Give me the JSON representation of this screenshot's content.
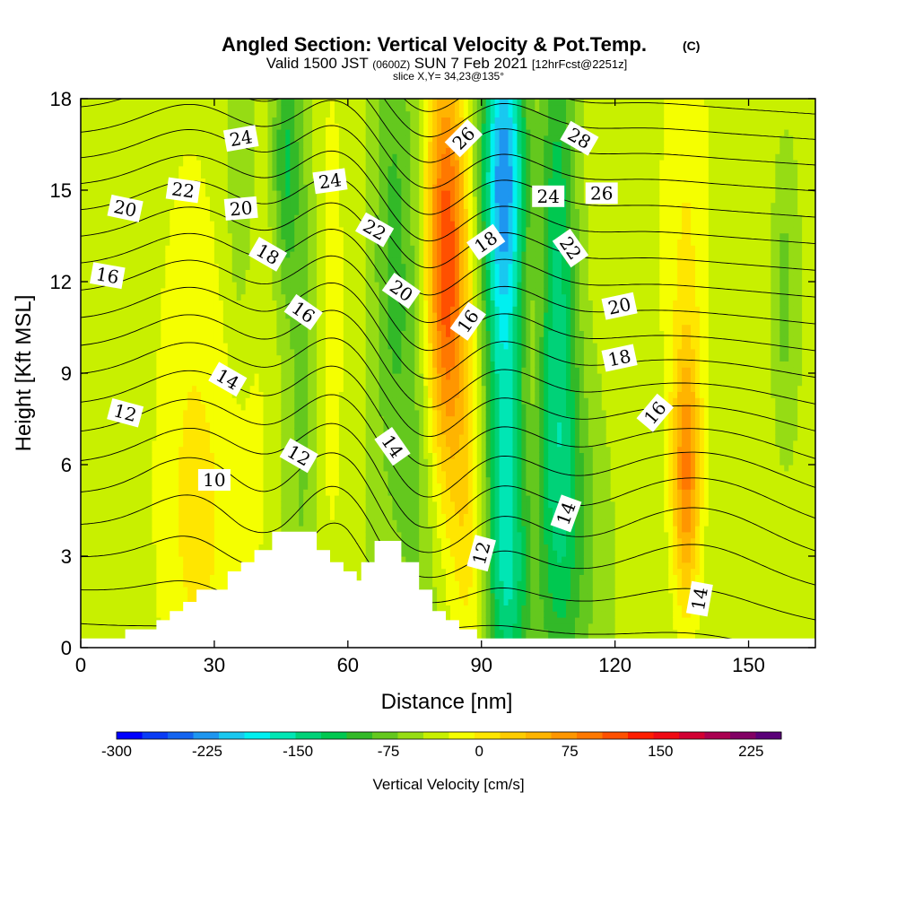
{
  "chart_data": {
    "type": "heatmap",
    "title": "Angled Section: Vertical Velocity & Pot.Temp.",
    "title_unit": "(C)",
    "subtitle_parts": [
      "Valid 1500 JST",
      "(0600Z)",
      "SUN 7 Feb 2021",
      "[12hrFcst@2251z]"
    ],
    "slice_text": "slice X,Y= 34,23@135°",
    "xlabel": "Distance [nm]",
    "ylabel": "Height [Kft MSL]",
    "xlim": [
      0,
      165
    ],
    "ylim": [
      0,
      18
    ],
    "x_ticks": [
      "0",
      "30",
      "60",
      "90",
      "120",
      "150"
    ],
    "y_ticks": [
      "0",
      "3",
      "6",
      "9",
      "12",
      "15",
      "18"
    ],
    "colorbar": {
      "label": "Vertical Velocity [cm/s]",
      "min": -300,
      "max": 250,
      "step": 25,
      "tick_labels": [
        "-300",
        "-225",
        "-150",
        "-75",
        "0",
        "75",
        "150",
        "225"
      ],
      "colors": [
        "#0000ff",
        "#0a3cf5",
        "#1464f0",
        "#1e96f0",
        "#19c8f0",
        "#00f0f0",
        "#00e6b4",
        "#00d278",
        "#00c850",
        "#32b928",
        "#64c81e",
        "#96dc14",
        "#c8f000",
        "#f5ff00",
        "#ffe600",
        "#ffcc00",
        "#ffb400",
        "#ff9600",
        "#ff7800",
        "#ff5000",
        "#ff1e00",
        "#f00a14",
        "#d20032",
        "#aa0050",
        "#820064",
        "#5a0078"
      ]
    },
    "velocity_features": [
      {
        "x": 7,
        "z": 9,
        "w": 10,
        "sx": 10,
        "sz": 14
      },
      {
        "x": 27,
        "z": 3,
        "w": 35,
        "sx": 7,
        "sz": 5
      },
      {
        "x": 25,
        "z": 10,
        "w": 30,
        "sx": 6,
        "sz": 8
      },
      {
        "x": 38,
        "z": 9,
        "w": 30,
        "sx": 4,
        "sz": 8
      },
      {
        "x": 36,
        "z": 15,
        "w": -45,
        "sx": 2.5,
        "sz": 5
      },
      {
        "x": 46,
        "z": 16,
        "w": -75,
        "sx": 2,
        "sz": 3
      },
      {
        "x": 50,
        "z": 9,
        "w": -35,
        "sx": 2.5,
        "sz": 8
      },
      {
        "x": 56,
        "z": 11,
        "w": 35,
        "sx": 3,
        "sz": 9
      },
      {
        "x": 63,
        "z": 12,
        "w": 5,
        "sx": 3,
        "sz": 7
      },
      {
        "x": 70,
        "z": 13,
        "w": -55,
        "sx": 3,
        "sz": 6
      },
      {
        "x": 76,
        "z": 8,
        "w": -40,
        "sx": 3,
        "sz": 7
      },
      {
        "x": 82,
        "z": 15,
        "w": 130,
        "sx": 3.5,
        "sz": 4
      },
      {
        "x": 82,
        "z": 10,
        "w": 110,
        "sx": 3.5,
        "sz": 4
      },
      {
        "x": 87,
        "z": 4,
        "w": 60,
        "sx": 3,
        "sz": 4
      },
      {
        "x": 95,
        "z": 16,
        "w": -170,
        "sx": 3.5,
        "sz": 3.5
      },
      {
        "x": 95,
        "z": 8,
        "w": -120,
        "sx": 3,
        "sz": 6
      },
      {
        "x": 97,
        "z": 2,
        "w": -65,
        "sx": 4,
        "sz": 3
      },
      {
        "x": 102,
        "z": 10,
        "w": 20,
        "sx": 2,
        "sz": 9
      },
      {
        "x": 107,
        "z": 11,
        "w": -110,
        "sx": 3,
        "sz": 7
      },
      {
        "x": 110,
        "z": 4,
        "w": -55,
        "sx": 5,
        "sz": 4
      },
      {
        "x": 121,
        "z": 13,
        "w": 15,
        "sx": 9,
        "sz": 8
      },
      {
        "x": 136,
        "z": 5.5,
        "w": 135,
        "sx": 2.2,
        "sz": 3
      },
      {
        "x": 136,
        "z": 14,
        "w": 40,
        "sx": 4,
        "sz": 6
      },
      {
        "x": 143,
        "z": 13,
        "w": 8,
        "sx": 8,
        "sz": 8
      },
      {
        "x": 158,
        "z": 11.5,
        "w": -50,
        "sx": 1.3,
        "sz": 2
      }
    ],
    "theta_levels": [
      10,
      11,
      12,
      13,
      14,
      15,
      16,
      17,
      18,
      19,
      20,
      21,
      22,
      23,
      24,
      25,
      26,
      27,
      28,
      29,
      30
    ],
    "contour_labels": [
      {
        "text": "24",
        "x": 36,
        "z": 16.7,
        "angle": -10
      },
      {
        "text": "22",
        "x": 23,
        "z": 15.0,
        "angle": 8
      },
      {
        "text": "20",
        "x": 10,
        "z": 14.4,
        "angle": 12
      },
      {
        "text": "20",
        "x": 36,
        "z": 14.4,
        "angle": -5
      },
      {
        "text": "24",
        "x": 56,
        "z": 15.3,
        "angle": -8
      },
      {
        "text": "22",
        "x": 66,
        "z": 13.7,
        "angle": 30
      },
      {
        "text": "18",
        "x": 42,
        "z": 12.9,
        "angle": 30
      },
      {
        "text": "16",
        "x": 6,
        "z": 12.2,
        "angle": 10
      },
      {
        "text": "16",
        "x": 50,
        "z": 11.0,
        "angle": 35
      },
      {
        "text": "20",
        "x": 72,
        "z": 11.7,
        "angle": 35
      },
      {
        "text": "26",
        "x": 86,
        "z": 16.7,
        "angle": -45
      },
      {
        "text": "18",
        "x": 91,
        "z": 13.3,
        "angle": -35
      },
      {
        "text": "16",
        "x": 87,
        "z": 10.7,
        "angle": -55
      },
      {
        "text": "28",
        "x": 112,
        "z": 16.7,
        "angle": 30
      },
      {
        "text": "24",
        "x": 105,
        "z": 14.8,
        "angle": 0
      },
      {
        "text": "26",
        "x": 117,
        "z": 14.9,
        "angle": 0
      },
      {
        "text": "22",
        "x": 110,
        "z": 13.1,
        "angle": 55
      },
      {
        "text": "20",
        "x": 121,
        "z": 11.2,
        "angle": -12
      },
      {
        "text": "18",
        "x": 121,
        "z": 9.5,
        "angle": -12
      },
      {
        "text": "14",
        "x": 33,
        "z": 8.8,
        "angle": 30
      },
      {
        "text": "12",
        "x": 10,
        "z": 7.7,
        "angle": 15
      },
      {
        "text": "16",
        "x": 129,
        "z": 7.7,
        "angle": -50
      },
      {
        "text": "12",
        "x": 49,
        "z": 6.3,
        "angle": 30
      },
      {
        "text": "14",
        "x": 70,
        "z": 6.6,
        "angle": 55
      },
      {
        "text": "10",
        "x": 30,
        "z": 5.5,
        "angle": 0
      },
      {
        "text": "14",
        "x": 109,
        "z": 4.4,
        "angle": -70
      },
      {
        "text": "12",
        "x": 90,
        "z": 3.1,
        "angle": -75
      },
      {
        "text": "14",
        "x": 139,
        "z": 1.6,
        "angle": -80
      }
    ],
    "terrain": [
      {
        "x": 0,
        "z": 0.3
      },
      {
        "x": 10,
        "z": 0.3
      },
      {
        "x": 10,
        "z": 0.6
      },
      {
        "x": 17,
        "z": 0.6
      },
      {
        "x": 17,
        "z": 0.9
      },
      {
        "x": 20,
        "z": 0.9
      },
      {
        "x": 20,
        "z": 1.2
      },
      {
        "x": 23,
        "z": 1.2
      },
      {
        "x": 23,
        "z": 1.5
      },
      {
        "x": 26,
        "z": 1.5
      },
      {
        "x": 26,
        "z": 1.9
      },
      {
        "x": 33,
        "z": 1.9
      },
      {
        "x": 33,
        "z": 2.5
      },
      {
        "x": 36,
        "z": 2.5
      },
      {
        "x": 36,
        "z": 2.8
      },
      {
        "x": 39,
        "z": 2.8
      },
      {
        "x": 39,
        "z": 3.2
      },
      {
        "x": 43,
        "z": 3.2
      },
      {
        "x": 43,
        "z": 3.8
      },
      {
        "x": 53,
        "z": 3.8
      },
      {
        "x": 53,
        "z": 3.2
      },
      {
        "x": 56,
        "z": 3.2
      },
      {
        "x": 56,
        "z": 2.8
      },
      {
        "x": 59,
        "z": 2.8
      },
      {
        "x": 59,
        "z": 2.5
      },
      {
        "x": 62,
        "z": 2.5
      },
      {
        "x": 62,
        "z": 2.2
      },
      {
        "x": 63,
        "z": 2.2
      },
      {
        "x": 63,
        "z": 2.8
      },
      {
        "x": 66,
        "z": 2.8
      },
      {
        "x": 66,
        "z": 3.5
      },
      {
        "x": 72,
        "z": 3.5
      },
      {
        "x": 72,
        "z": 2.8
      },
      {
        "x": 76,
        "z": 2.8
      },
      {
        "x": 76,
        "z": 1.9
      },
      {
        "x": 79,
        "z": 1.9
      },
      {
        "x": 79,
        "z": 1.2
      },
      {
        "x": 82,
        "z": 1.2
      },
      {
        "x": 82,
        "z": 0.9
      },
      {
        "x": 85,
        "z": 0.9
      },
      {
        "x": 85,
        "z": 0.6
      },
      {
        "x": 89,
        "z": 0.6
      },
      {
        "x": 89,
        "z": 0.3
      },
      {
        "x": 165,
        "z": 0.3
      }
    ]
  }
}
